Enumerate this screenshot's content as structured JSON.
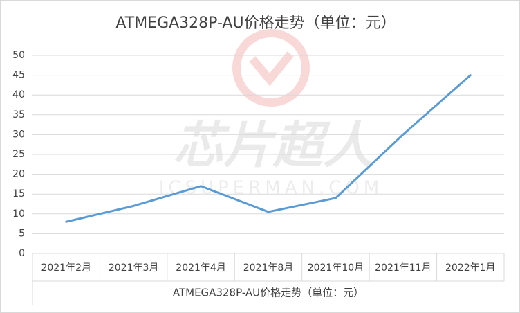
{
  "chart_data": {
    "type": "line",
    "title": "ATMEGA328P-AU价格走势（单位：元）",
    "x_label": "ATMEGA328P-AU价格走势（单位：元）",
    "categories": [
      "2021年2月",
      "2021年3月",
      "2021年4月",
      "2021年8月",
      "2021年10月",
      "2021年11月",
      "2022年1月"
    ],
    "values": [
      8,
      12,
      17,
      10.5,
      14,
      30,
      45
    ],
    "color": "#5b9bd5",
    "ylim": [
      0,
      50
    ],
    "yticks": [
      0,
      5,
      10,
      15,
      20,
      25,
      30,
      35,
      40,
      45,
      50
    ],
    "grid": true,
    "watermark": {
      "brand": "芯片超人",
      "site": "ICSUPERMAN.COM"
    }
  }
}
